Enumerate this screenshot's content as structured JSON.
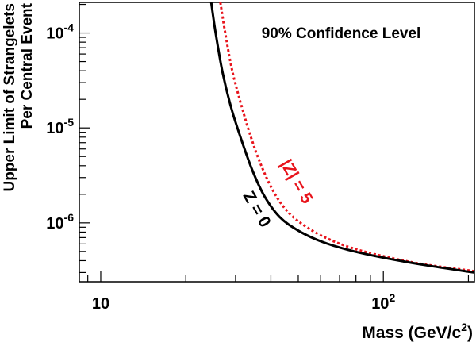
{
  "chart_data": {
    "type": "line",
    "title": "",
    "annotation": "90% Confidence Level",
    "xlabel": "Mass (GeV/c²)",
    "xlabel_parts": {
      "text": "Mass (GeV/c",
      "sup": "2",
      "close": ")"
    },
    "ylabel": "Upper Limit of Strangelets Per Central Event",
    "ylabel_lines": [
      "Upper Limit of Strangelets",
      "Per Central Event"
    ],
    "x_scale": "log",
    "y_scale": "log",
    "xlim": [
      8.4,
      210
    ],
    "ylim": [
      2.4e-07,
      0.00021
    ],
    "x_ticks": [
      {
        "value": 10,
        "base": "10",
        "exp": ""
      },
      {
        "value": 100,
        "base": "10",
        "exp": "2"
      }
    ],
    "y_ticks": [
      {
        "value": 1e-06,
        "base": "10",
        "exp": "-6"
      },
      {
        "value": 1e-05,
        "base": "10",
        "exp": "-5"
      },
      {
        "value": 0.0001,
        "base": "10",
        "exp": "-4"
      }
    ],
    "grid": false,
    "series": [
      {
        "name": "Z = 0",
        "color": "#000000",
        "style": "solid",
        "x": [
          24.6,
          25.5,
          27,
          29,
          31.5,
          34.5,
          38,
          43,
          50,
          60,
          75,
          100,
          140,
          210
        ],
        "y": [
          0.00021,
          0.0001,
          3.8e-05,
          1.6e-05,
          7.4e-06,
          3.5e-06,
          1.9e-06,
          1.15e-06,
          8.3e-07,
          6.4e-07,
          5.2e-07,
          4.3e-07,
          3.6e-07,
          3e-07
        ]
      },
      {
        "name": "|Z| = 5",
        "color": "#e8141c",
        "style": "dotted",
        "x": [
          26.5,
          27.5,
          29.2,
          31.5,
          34,
          37,
          41,
          46,
          53,
          63,
          78,
          102,
          140,
          210
        ],
        "y": [
          0.00021,
          0.000105,
          4e-05,
          1.7e-05,
          8e-06,
          4e-06,
          2.1e-06,
          1.3e-06,
          9.2e-07,
          6.9e-07,
          5.4e-07,
          4.4e-07,
          3.65e-07,
          3.1e-07
        ]
      }
    ]
  },
  "labels": {
    "confidence": "90% Confidence Level",
    "z0": "Z = 0",
    "z5": "|Z| = 5"
  },
  "colors": {
    "z5": "#e8141c"
  }
}
